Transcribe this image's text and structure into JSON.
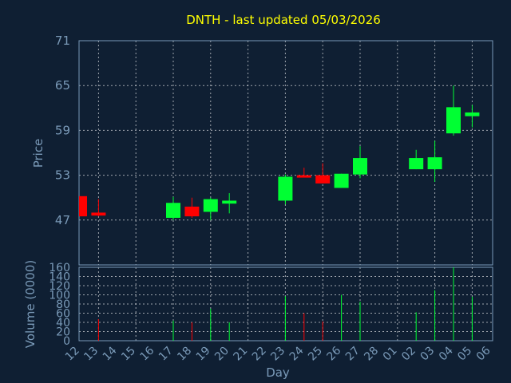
{
  "chart_data": {
    "type": "candlestick",
    "title": "DNTH - last updated 05/03/2026",
    "xlabel": "Day",
    "ylabel": "Price",
    "volume_label": "Volume (0000)",
    "x_ticks": [
      "12",
      "13",
      "14",
      "15",
      "16",
      "17",
      "18",
      "19",
      "20",
      "21",
      "22",
      "23",
      "24",
      "25",
      "26",
      "27",
      "28",
      "01",
      "02",
      "03",
      "04",
      "05",
      "06"
    ],
    "price_ylim": [
      41,
      71
    ],
    "price_ticks": [
      47,
      53,
      59,
      65,
      71
    ],
    "volume_ylim": [
      0,
      160
    ],
    "volume_ticks": [
      0,
      20,
      40,
      60,
      80,
      100,
      120,
      140,
      160
    ],
    "grid": true,
    "colors": {
      "up": "#00ff33",
      "down": "#ff0000",
      "title": "#ffff00",
      "axis": "#7a9ab8",
      "grid": "#ffffff",
      "background": "#0f1f33"
    },
    "candles": [
      {
        "x": "12",
        "open": 50.2,
        "high": 50.2,
        "low": 47.5,
        "close": 47.5,
        "volume": 0
      },
      {
        "x": "13",
        "open": 48.0,
        "high": 49.8,
        "low": 47.5,
        "close": 47.6,
        "volume": 47
      },
      {
        "x": "17",
        "open": 47.3,
        "high": 50.1,
        "low": 47.0,
        "close": 49.3,
        "volume": 44
      },
      {
        "x": "18",
        "open": 48.8,
        "high": 50.0,
        "low": 47.3,
        "close": 47.5,
        "volume": 40
      },
      {
        "x": "19",
        "open": 48.1,
        "high": 50.0,
        "low": 47.0,
        "close": 49.8,
        "volume": 70
      },
      {
        "x": "20",
        "open": 49.2,
        "high": 50.6,
        "low": 47.9,
        "close": 49.6,
        "volume": 40
      },
      {
        "x": "23",
        "open": 49.6,
        "high": 53.1,
        "low": 49.1,
        "close": 52.8,
        "volume": 97
      },
      {
        "x": "24",
        "open": 53.0,
        "high": 54.0,
        "low": 52.7,
        "close": 52.7,
        "volume": 60
      },
      {
        "x": "25",
        "open": 53.0,
        "high": 54.6,
        "low": 51.9,
        "close": 51.9,
        "volume": 42
      },
      {
        "x": "26",
        "open": 51.3,
        "high": 53.2,
        "low": 51.3,
        "close": 53.2,
        "volume": 100
      },
      {
        "x": "27",
        "open": 53.1,
        "high": 56.9,
        "low": 52.6,
        "close": 55.3,
        "volume": 85
      },
      {
        "x": "02",
        "open": 53.8,
        "high": 56.4,
        "low": 53.8,
        "close": 55.3,
        "volume": 62
      },
      {
        "x": "03",
        "open": 53.8,
        "high": 57.6,
        "low": 52.1,
        "close": 55.4,
        "volume": 110
      },
      {
        "x": "04",
        "open": 58.6,
        "high": 65.0,
        "low": 58.3,
        "close": 62.1,
        "volume": 160
      },
      {
        "x": "05",
        "open": 60.9,
        "high": 62.4,
        "low": 59.4,
        "close": 61.4,
        "volume": 96
      }
    ]
  }
}
